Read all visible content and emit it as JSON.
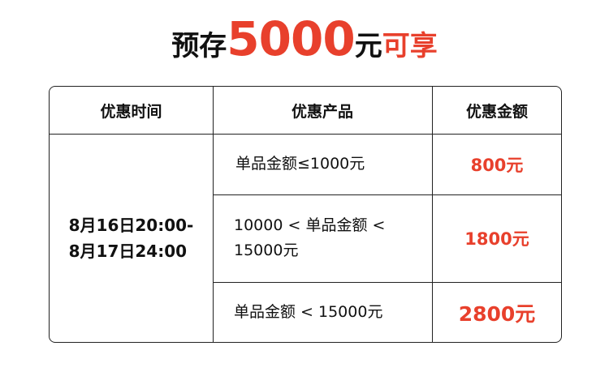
{
  "title": {
    "prefix": "预存",
    "amount": "5000",
    "unit": "元",
    "suffix": "可享"
  },
  "colors": {
    "accent": "#e8402c",
    "text": "#111111"
  },
  "table": {
    "headers": [
      "优惠时间",
      "优惠产品",
      "优惠金额"
    ],
    "time": {
      "line1": "8月16日20:00-",
      "line2": "8月17日24:00"
    },
    "rows": [
      {
        "product": "单品金额≤1000元",
        "discount": "800元"
      },
      {
        "product": "10000 < 单品金额 < 15000元",
        "discount": "1800元"
      },
      {
        "product": "单品金额 < 15000元",
        "discount": "2800元"
      }
    ]
  }
}
